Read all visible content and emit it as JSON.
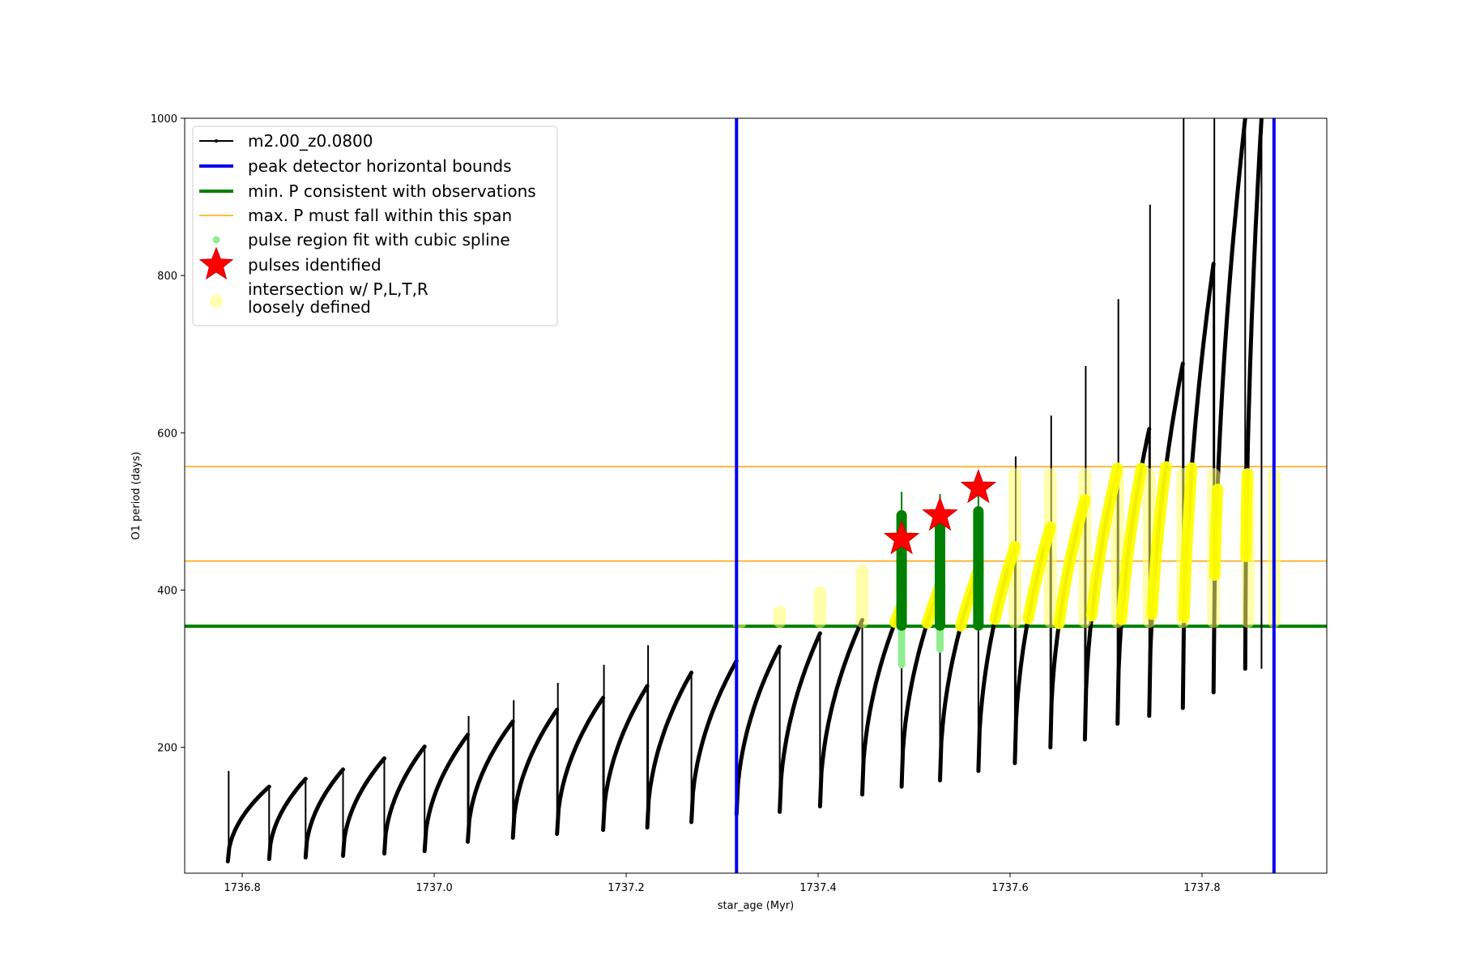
{
  "chart_data": {
    "type": "line",
    "xlabel": "star_age (Myr)",
    "ylabel": "O1 period (days)",
    "xlim": [
      1736.74,
      1737.93
    ],
    "ylim": [
      40,
      1000
    ],
    "x_ticks": [
      1736.8,
      1737.0,
      1737.2,
      1737.4,
      1737.6,
      1737.8
    ],
    "x_tick_labels": [
      "1736.8",
      "1737.0",
      "1737.2",
      "1737.4",
      "1737.6",
      "1737.8"
    ],
    "y_ticks": [
      200,
      400,
      600,
      800,
      1000
    ],
    "y_tick_labels": [
      "200",
      "400",
      "600",
      "800",
      "1000"
    ],
    "grid": false,
    "legend_position": "top-left",
    "legend": [
      {
        "label": "m2.00_z0.0800",
        "marker": "line-dot",
        "color": "#000000"
      },
      {
        "label": "peak detector horizontal bounds",
        "marker": "line-thick",
        "color": "#0000ee"
      },
      {
        "label": "min. P consistent with observations",
        "marker": "line-thick",
        "color": "#008000"
      },
      {
        "label": "max. P must fall within this span",
        "marker": "line-thin",
        "color": "#ffa500"
      },
      {
        "label": "pulse region fit with cubic spline",
        "marker": "dot",
        "color": "#90ee90"
      },
      {
        "label": "pulses identified",
        "marker": "star",
        "color": "#ff0000"
      },
      {
        "label": "intersection w/ P,L,T,R",
        "label2": "loosely defined",
        "marker": "big-dot",
        "color": "#ffffb0"
      }
    ],
    "vlines": [
      {
        "x": 1737.315,
        "color": "#0000ee"
      },
      {
        "x": 1737.875,
        "color": "#0000ee"
      }
    ],
    "hlines": [
      {
        "y": 354,
        "color": "#008000",
        "width": 4
      },
      {
        "y": 437,
        "color": "#ffa500",
        "width": 1.5
      },
      {
        "y": 557,
        "color": "#ffa500",
        "width": 1.5
      }
    ],
    "pulses": [
      {
        "start": 1736.785,
        "end": 1736.828,
        "pmin": 55,
        "pmax": 150,
        "spike": 170
      },
      {
        "start": 1736.828,
        "end": 1736.866,
        "pmin": 58,
        "pmax": 160
      },
      {
        "start": 1736.866,
        "end": 1736.905,
        "pmin": 60,
        "pmax": 172
      },
      {
        "start": 1736.905,
        "end": 1736.948,
        "pmin": 62,
        "pmax": 186
      },
      {
        "start": 1736.948,
        "end": 1736.99,
        "pmin": 65,
        "pmax": 201
      },
      {
        "start": 1736.99,
        "end": 1737.035,
        "pmin": 68,
        "pmax": 216
      },
      {
        "start": 1737.035,
        "end": 1737.082,
        "pmin": 80,
        "pmax": 233,
        "spike": 240
      },
      {
        "start": 1737.082,
        "end": 1737.128,
        "pmin": 85,
        "pmax": 248,
        "spike": 260
      },
      {
        "start": 1737.128,
        "end": 1737.176,
        "pmin": 90,
        "pmax": 263,
        "spike": 282
      },
      {
        "start": 1737.176,
        "end": 1737.222,
        "pmin": 95,
        "pmax": 278,
        "spike": 305
      },
      {
        "start": 1737.222,
        "end": 1737.268,
        "pmin": 98,
        "pmax": 295,
        "spike": 330
      },
      {
        "start": 1737.268,
        "end": 1737.315,
        "pmin": 105,
        "pmax": 310
      },
      {
        "start": 1737.315,
        "end": 1737.36,
        "pmin": 115,
        "pmax": 328
      },
      {
        "start": 1737.36,
        "end": 1737.402,
        "pmin": 118,
        "pmax": 345
      },
      {
        "start": 1737.402,
        "end": 1737.446,
        "pmin": 125,
        "pmax": 362
      },
      {
        "start": 1737.446,
        "end": 1737.487,
        "pmin": 140,
        "pmax": 380
      },
      {
        "start": 1737.487,
        "end": 1737.527,
        "pmin": 150,
        "pmax": 405
      },
      {
        "start": 1737.527,
        "end": 1737.567,
        "pmin": 158,
        "pmax": 425
      },
      {
        "start": 1737.567,
        "end": 1737.605,
        "pmin": 170,
        "pmax": 455
      },
      {
        "start": 1737.605,
        "end": 1737.642,
        "pmin": 180,
        "pmax": 480,
        "spike": 570
      },
      {
        "start": 1737.642,
        "end": 1737.678,
        "pmin": 200,
        "pmax": 515,
        "spike": 622
      },
      {
        "start": 1737.678,
        "end": 1737.712,
        "pmin": 210,
        "pmax": 555,
        "spike": 685
      },
      {
        "start": 1737.712,
        "end": 1737.745,
        "pmin": 230,
        "pmax": 605,
        "spike": 770
      },
      {
        "start": 1737.745,
        "end": 1737.78,
        "pmin": 240,
        "pmax": 688,
        "spike": 890
      },
      {
        "start": 1737.78,
        "end": 1737.812,
        "pmin": 250,
        "pmax": 815,
        "spike": 1000
      },
      {
        "start": 1737.812,
        "end": 1737.845,
        "pmin": 270,
        "pmax": 1000,
        "spike": 1000
      },
      {
        "start": 1737.845,
        "end": 1737.862,
        "pmin": 300,
        "pmax": 1000
      }
    ],
    "green_spikes": [
      {
        "x": 1737.487,
        "top": 525,
        "ymin": 355,
        "ymax": 495
      },
      {
        "x": 1737.527,
        "top": 522,
        "ymin": 355,
        "ymax": 497
      },
      {
        "x": 1737.567,
        "top": 545,
        "ymin": 355,
        "ymax": 500
      }
    ],
    "spline_points": [
      {
        "x": 1737.487,
        "ymin": 305,
        "ymax": 360
      },
      {
        "x": 1737.527,
        "ymin": 325,
        "ymax": 360
      }
    ],
    "stars": [
      {
        "x": 1737.487,
        "y": 465
      },
      {
        "x": 1737.527,
        "y": 495
      },
      {
        "x": 1737.567,
        "y": 530
      }
    ],
    "yellow_columns": [
      {
        "x": 1737.318,
        "ymin": 352,
        "ymax": 358
      },
      {
        "x": 1737.36,
        "ymin": 352,
        "ymax": 380
      },
      {
        "x": 1737.402,
        "ymin": 352,
        "ymax": 405
      },
      {
        "x": 1737.446,
        "ymin": 352,
        "ymax": 432
      },
      {
        "x": 1737.605,
        "ymin": 352,
        "ymax": 555
      },
      {
        "x": 1737.642,
        "ymin": 352,
        "ymax": 555
      },
      {
        "x": 1737.678,
        "ymin": 352,
        "ymax": 555
      },
      {
        "x": 1737.712,
        "ymin": 352,
        "ymax": 555
      },
      {
        "x": 1737.745,
        "ymin": 352,
        "ymax": 555
      },
      {
        "x": 1737.78,
        "ymin": 352,
        "ymax": 555
      },
      {
        "x": 1737.812,
        "ymin": 352,
        "ymax": 555
      },
      {
        "x": 1737.848,
        "ymin": 352,
        "ymax": 555
      },
      {
        "x": 1737.875,
        "ymin": 352,
        "ymax": 555
      }
    ]
  }
}
